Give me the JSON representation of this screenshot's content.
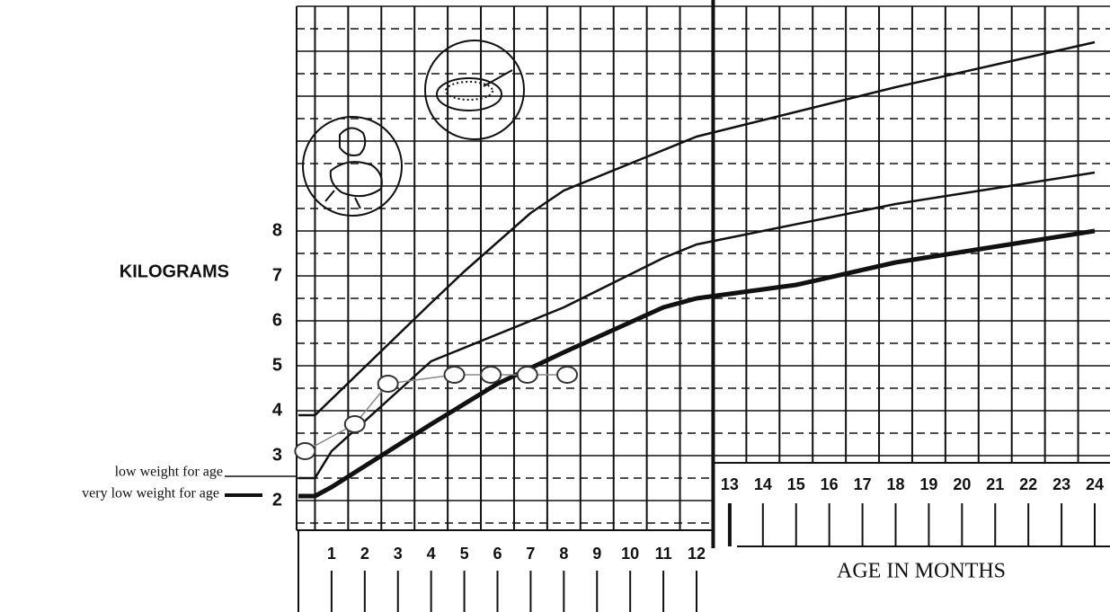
{
  "chart_data": {
    "type": "line",
    "y_label": "KILOGRAMS",
    "x_label": "AGE IN MONTHS",
    "annotations": [
      {
        "text": "low weight for age"
      },
      {
        "text": "very low weight for age"
      }
    ],
    "xlim": [
      0,
      24
    ],
    "xticks": [
      1,
      2,
      3,
      4,
      5,
      6,
      7,
      8,
      9,
      10,
      11,
      12,
      13,
      14,
      15,
      16,
      17,
      18,
      19,
      20,
      21,
      22,
      23,
      24
    ],
    "ylim": [
      1.5,
      13
    ],
    "yticks": [
      2,
      3,
      4,
      5,
      6,
      7,
      8
    ],
    "grid": true,
    "series": [
      {
        "color": "#111111",
        "width": 2.5,
        "marker": "none",
        "x": [
          0,
          0.5,
          4,
          5,
          7,
          8,
          10,
          12,
          18,
          24
        ],
        "values": [
          3.9,
          3.9,
          6.4,
          7.1,
          8.4,
          8.9,
          9.5,
          10.1,
          11.2,
          12.2
        ]
      },
      {
        "color": "#111111",
        "width": 2.5,
        "marker": "none",
        "x": [
          0,
          0.5,
          1,
          4,
          8,
          11,
          12,
          18,
          24
        ],
        "values": [
          2.5,
          2.5,
          3.1,
          5.1,
          6.3,
          7.4,
          7.7,
          8.6,
          9.3
        ]
      },
      {
        "color": "#111111",
        "width": 5,
        "marker": "none",
        "x": [
          0,
          0.5,
          1,
          4,
          6,
          8,
          11,
          12,
          15,
          18,
          24
        ],
        "values": [
          2.1,
          2.1,
          2.3,
          3.7,
          4.6,
          5.3,
          6.3,
          6.5,
          6.8,
          7.3,
          8.0
        ]
      },
      {
        "color": "#888888",
        "width": 1.5,
        "marker": "circle",
        "x": [
          0.2,
          1.7,
          2.7,
          4.7,
          5.8,
          6.9,
          8.1
        ],
        "values": [
          3.1,
          3.7,
          4.6,
          4.8,
          4.8,
          4.8,
          4.8
        ]
      }
    ]
  }
}
